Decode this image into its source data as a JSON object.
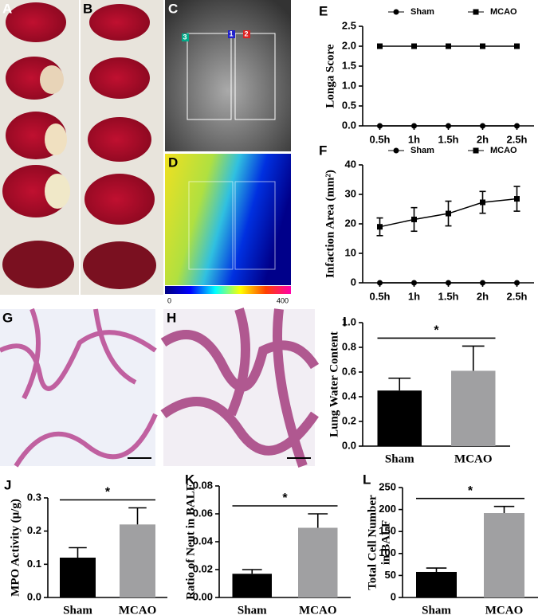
{
  "images": {
    "panels": [
      "A",
      "B",
      "C",
      "D",
      "G",
      "H"
    ],
    "regions": [
      "1",
      "2",
      "3"
    ],
    "colorbar": {
      "min_label": "0",
      "max_label": "400"
    }
  },
  "chart_data": [
    {
      "panel": "E",
      "type": "line",
      "ylabel": "Longa Score",
      "categories": [
        "0.5h",
        "1h",
        "1.5h",
        "2h",
        "2.5h"
      ],
      "series": [
        {
          "name": "Sham",
          "color": "#000000",
          "marker": "circle",
          "values": [
            0,
            0,
            0,
            0,
            0
          ]
        },
        {
          "name": "MCAO",
          "color": "#000000",
          "marker": "square",
          "values": [
            2,
            2,
            2,
            2,
            2
          ]
        }
      ],
      "ylim": [
        0,
        2.5
      ],
      "yticks": [
        {
          "value": 0,
          "label": "0.0"
        },
        0.5,
        {
          "value": 1,
          "label": "1.0"
        },
        1.5,
        {
          "value": 2,
          "label": "2.0"
        },
        2.5
      ]
    },
    {
      "panel": "F",
      "type": "line",
      "ylabel": "Infaction Area (mm²)",
      "categories": [
        "0.5h",
        "1h",
        "1.5h",
        "2h",
        "2.5h"
      ],
      "series": [
        {
          "name": "Sham",
          "color": "#000000",
          "marker": "circle",
          "values": [
            0,
            0,
            0,
            0,
            0
          ]
        },
        {
          "name": "MCAO",
          "color": "#000000",
          "marker": "square",
          "values": [
            19,
            21.5,
            23.5,
            27.3,
            28.5
          ],
          "errors": [
            3,
            4,
            4.2,
            3.7,
            4.2
          ]
        }
      ],
      "ylim": [
        0,
        40
      ],
      "yticks": [
        0,
        10,
        20,
        30,
        40
      ]
    },
    {
      "panel": "I",
      "type": "bar",
      "ylabel": "Lung Water Content",
      "categories": [
        "Sham",
        "MCAO"
      ],
      "values": [
        0.45,
        0.61
      ],
      "errors": [
        0.1,
        0.2
      ],
      "colors": [
        "#000000",
        "#a0a0a2"
      ],
      "annotation": "*",
      "ylim": [
        0,
        1
      ],
      "yticks": [
        {
          "value": 0,
          "label": "0.0"
        },
        0.2,
        0.4,
        0.6,
        0.8,
        {
          "value": 1,
          "label": "1.0"
        }
      ]
    },
    {
      "panel": "J",
      "type": "bar",
      "ylabel": "MPO Activity (μ/g)",
      "categories": [
        "Sham",
        "MCAO"
      ],
      "values": [
        0.12,
        0.22
      ],
      "errors": [
        0.03,
        0.05
      ],
      "colors": [
        "#000000",
        "#a0a0a2"
      ],
      "annotation": "*",
      "ylim": [
        0,
        0.3
      ],
      "yticks": [
        {
          "value": 0,
          "label": "0.0"
        },
        0.1,
        0.2,
        0.3
      ]
    },
    {
      "panel": "K",
      "type": "bar",
      "ylabel": "Ratio of Neut in BALF",
      "categories": [
        "Sham",
        "MCAO"
      ],
      "values": [
        0.017,
        0.05
      ],
      "errors": [
        0.003,
        0.01
      ],
      "colors": [
        "#000000",
        "#a0a0a2"
      ],
      "annotation": "*",
      "ylim": [
        0,
        0.08
      ],
      "yticks": [
        {
          "value": 0,
          "label": "0.00"
        },
        0.02,
        0.04,
        0.06,
        0.08
      ]
    },
    {
      "panel": "L",
      "type": "bar",
      "ylabel": [
        "Total Cell Number",
        "in BALF"
      ],
      "categories": [
        "Sham",
        "MCAO"
      ],
      "values": [
        58,
        192
      ],
      "errors": [
        9,
        15
      ],
      "colors": [
        "#000000",
        "#a0a0a2"
      ],
      "annotation": "*",
      "ylim": [
        0,
        250
      ],
      "yticks": [
        0,
        50,
        100,
        150,
        200,
        250
      ]
    }
  ]
}
